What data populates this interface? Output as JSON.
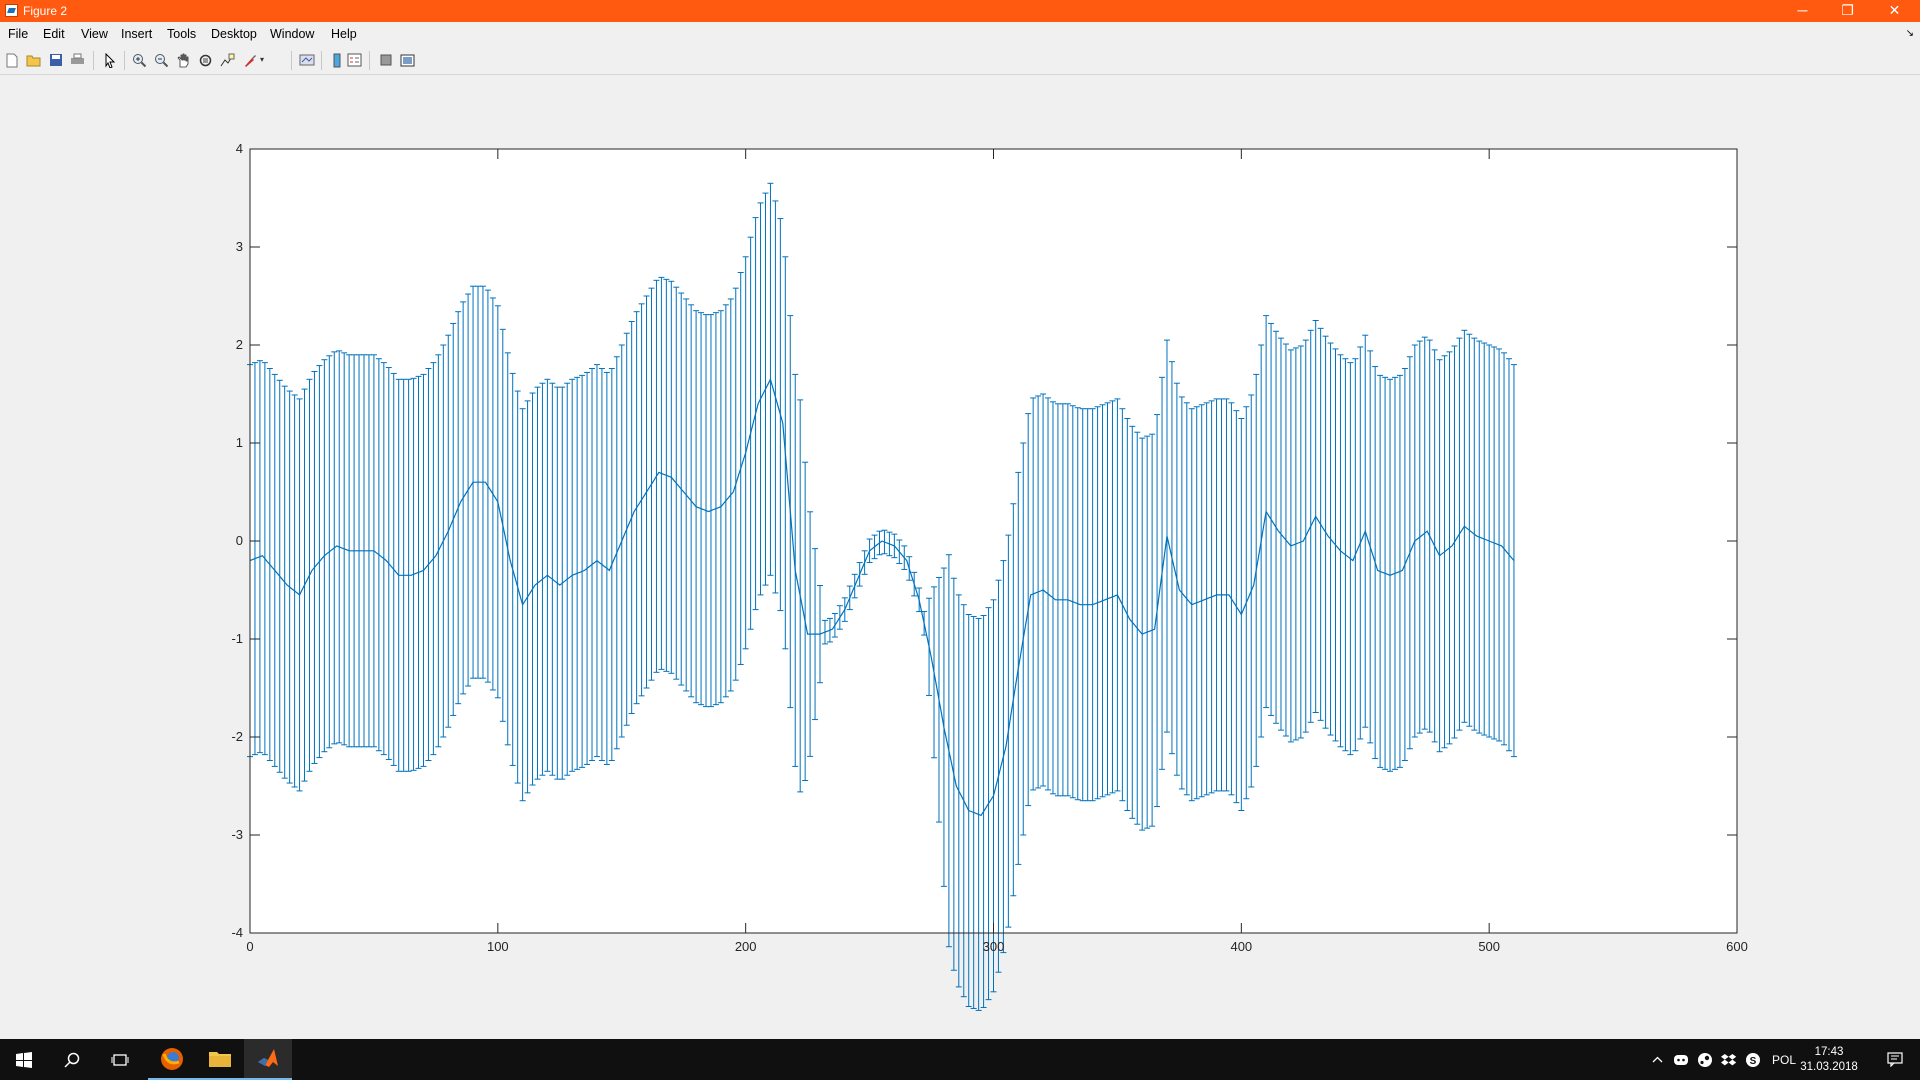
{
  "window": {
    "title": "Figure 2",
    "controls": {
      "minimize": "─",
      "restore": "❐",
      "close": "✕"
    }
  },
  "menu": [
    "File",
    "Edit",
    "View",
    "Insert",
    "Tools",
    "Desktop",
    "Window",
    "Help"
  ],
  "toolbar": [
    "new-figure-icon",
    "open-file-icon",
    "save-icon",
    "print-icon",
    "edit-plot-icon",
    "zoom-in-icon",
    "zoom-out-icon",
    "pan-icon",
    "rotate-3d-icon",
    "data-cursor-icon",
    "brush-icon",
    "link-plot-icon",
    "colorbar-icon",
    "legend-icon",
    "hide-plot-tools-icon",
    "show-plot-tools-icon"
  ],
  "taskbar": {
    "apps": [
      "windows-start-icon",
      "search-icon",
      "task-view-icon",
      "firefox-icon",
      "file-explorer-icon",
      "matlab-icon"
    ],
    "tray_icons": [
      "chevron-up-icon",
      "discord-icon",
      "steam-icon",
      "dropbox-icon",
      "skype-icon"
    ],
    "language": "POL",
    "time": "17:43",
    "date": "31.03.2018",
    "notification_icon": "action-center-icon"
  },
  "colors": {
    "titlebar": "#ff5a10",
    "series": "#0072bd",
    "taskbar": "#101010"
  },
  "chart_data": {
    "type": "line",
    "subtype": "errorbar",
    "title": "",
    "xlabel": "",
    "ylabel": "",
    "xlim": [
      0,
      600
    ],
    "ylim": [
      -4,
      4
    ],
    "xticks": [
      0,
      100,
      200,
      300,
      400,
      500,
      600
    ],
    "yticks": [
      -4,
      -3,
      -2,
      -1,
      0,
      1,
      2,
      3,
      4
    ],
    "grid": false,
    "error_bar_half_width": 2.0,
    "error_bar_half_width_note": "approximately constant; reduced to ~0.1-0.3 in x 220-280",
    "series": [
      {
        "x": [
          0,
          5,
          10,
          15,
          20,
          25,
          30,
          35,
          40,
          45,
          50,
          55,
          60,
          65,
          70,
          75,
          80,
          85,
          90,
          95,
          100,
          105,
          110,
          115,
          120,
          125,
          130,
          135,
          140,
          145,
          150,
          155,
          160,
          165,
          170,
          175,
          180,
          185,
          190,
          195,
          200,
          205,
          210,
          215,
          220,
          225,
          230,
          235,
          240,
          245,
          250,
          255,
          260,
          265,
          270,
          275,
          280,
          285,
          290,
          295,
          300,
          305,
          310,
          315,
          320,
          325,
          330,
          335,
          340,
          345,
          350,
          355,
          360,
          365,
          370,
          375,
          380,
          385,
          390,
          395,
          400,
          405,
          410,
          415,
          420,
          425,
          430,
          435,
          440,
          445,
          450,
          455,
          460,
          465,
          470,
          475,
          480,
          485,
          490,
          495,
          500,
          505,
          510
        ],
        "y": [
          -0.2,
          -0.15,
          -0.3,
          -0.45,
          -0.55,
          -0.3,
          -0.15,
          -0.05,
          -0.1,
          -0.1,
          -0.1,
          -0.2,
          -0.35,
          -0.35,
          -0.3,
          -0.15,
          0.1,
          0.4,
          0.6,
          0.6,
          0.4,
          -0.2,
          -0.65,
          -0.45,
          -0.35,
          -0.45,
          -0.35,
          -0.3,
          -0.2,
          -0.3,
          0.0,
          0.3,
          0.5,
          0.7,
          0.65,
          0.5,
          0.35,
          0.3,
          0.35,
          0.5,
          0.9,
          1.4,
          1.65,
          1.2,
          -0.3,
          -0.95,
          -0.95,
          -0.9,
          -0.7,
          -0.4,
          -0.1,
          0.0,
          -0.05,
          -0.2,
          -0.6,
          -1.2,
          -1.9,
          -2.5,
          -2.75,
          -2.8,
          -2.6,
          -2.1,
          -1.3,
          -0.55,
          -0.5,
          -0.6,
          -0.6,
          -0.65,
          -0.65,
          -0.6,
          -0.55,
          -0.8,
          -0.95,
          -0.9,
          0.05,
          -0.5,
          -0.65,
          -0.6,
          -0.55,
          -0.55,
          -0.75,
          -0.45,
          0.3,
          0.1,
          -0.05,
          0.0,
          0.25,
          0.05,
          -0.1,
          -0.2,
          0.1,
          -0.3,
          -0.35,
          -0.3,
          0.0,
          0.1,
          -0.15,
          -0.05,
          0.15,
          0.05,
          0.0,
          -0.05,
          -0.2
        ]
      }
    ]
  }
}
